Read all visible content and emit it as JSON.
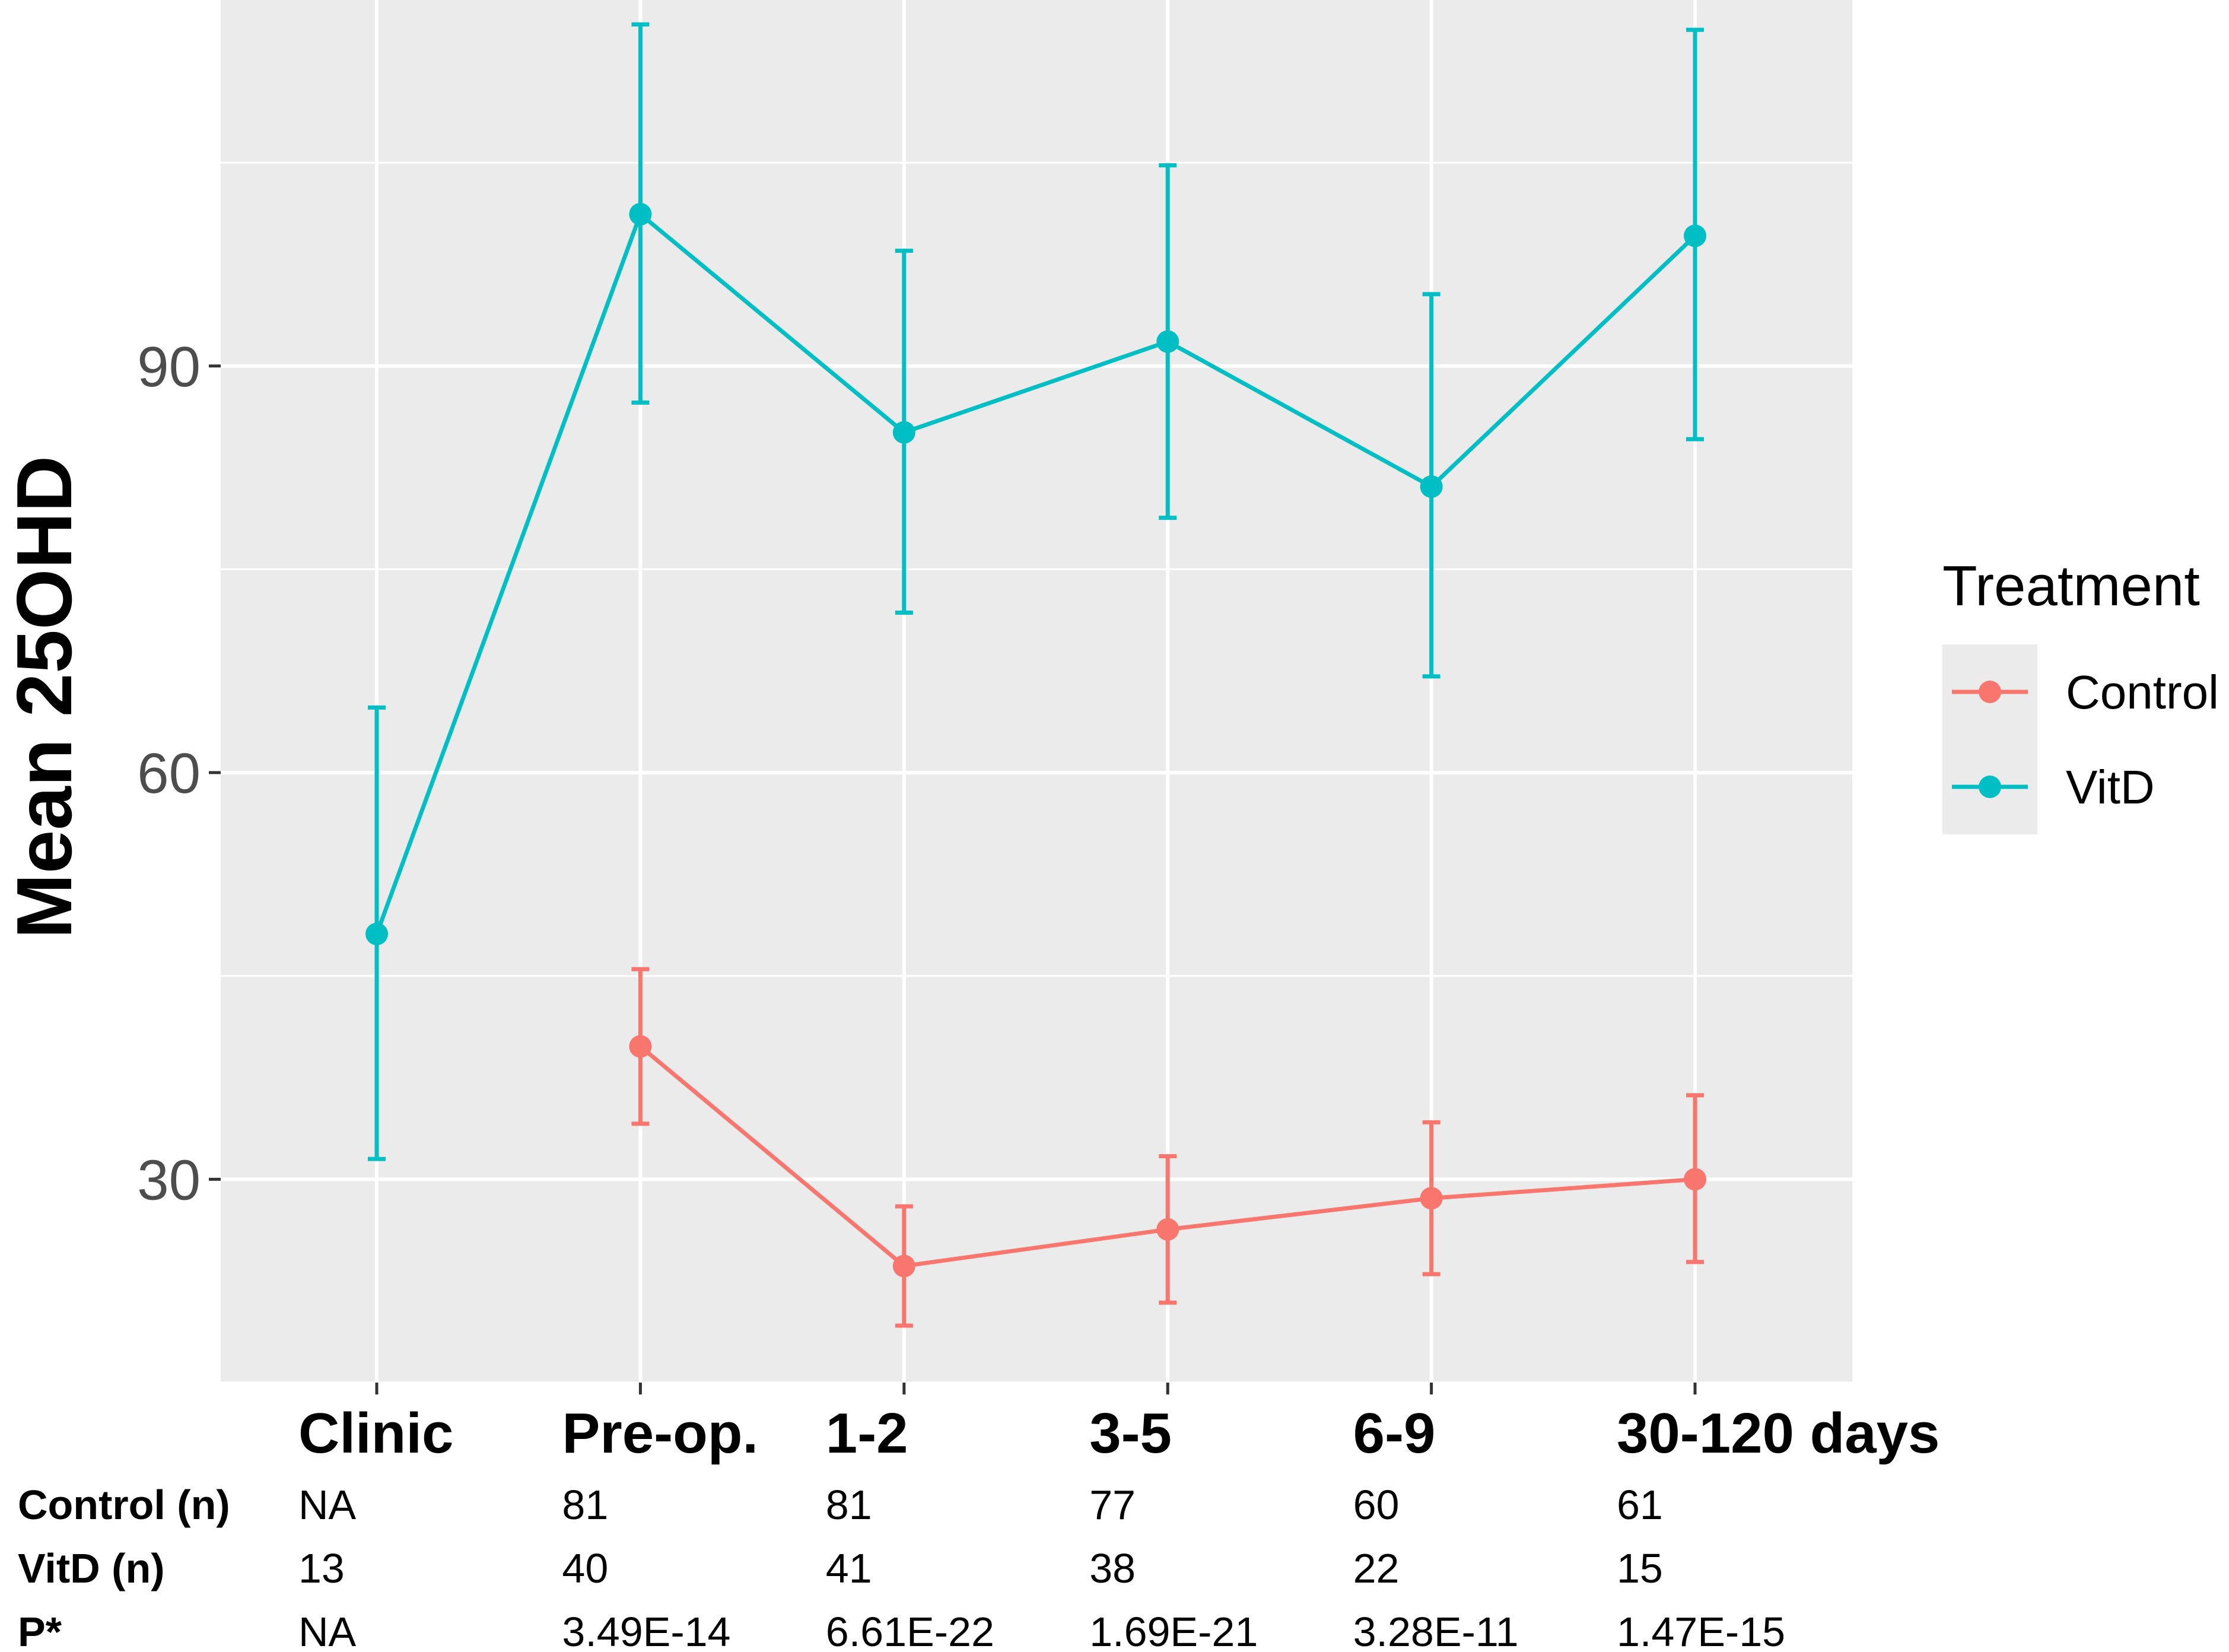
{
  "chart_data": {
    "type": "line",
    "title": "",
    "xlabel": "",
    "ylabel": "Mean 25OHD",
    "ylim": [
      15,
      117
    ],
    "yticks": [
      30,
      60,
      90
    ],
    "grid": true,
    "categories": [
      "Clinic",
      "Pre-op.",
      "1-2",
      "3-5",
      "6-9",
      "30-120 days"
    ],
    "legend": {
      "title": "Treatment",
      "position": "right"
    },
    "series": [
      {
        "name": "Control",
        "color": "#f8766d",
        "values": [
          null,
          39.8,
          23.6,
          26.3,
          28.6,
          30.0
        ],
        "lower": [
          null,
          34.1,
          19.2,
          20.9,
          23.0,
          23.9
        ],
        "upper": [
          null,
          45.5,
          28.0,
          31.7,
          34.2,
          36.2
        ]
      },
      {
        "name": "VitD",
        "color": "#00bfc4",
        "values": [
          48.1,
          101.2,
          85.1,
          91.8,
          81.1,
          99.6
        ],
        "lower": [
          31.5,
          87.3,
          71.8,
          78.8,
          67.1,
          84.6
        ],
        "upper": [
          64.8,
          115.2,
          98.5,
          104.8,
          95.3,
          114.8
        ]
      }
    ],
    "table": {
      "rows": [
        {
          "label": "Control (n)",
          "values": [
            "NA",
            "81",
            "81",
            "77",
            "60",
            "61"
          ]
        },
        {
          "label": "VitD (n)",
          "values": [
            "13",
            "40",
            "41",
            "38",
            "22",
            "15"
          ]
        },
        {
          "label": "P*",
          "values": [
            "NA",
            "3.49E-14",
            "6.61E-22",
            "1.69E-21",
            "3.28E-11",
            "1.47E-15"
          ]
        }
      ]
    }
  }
}
